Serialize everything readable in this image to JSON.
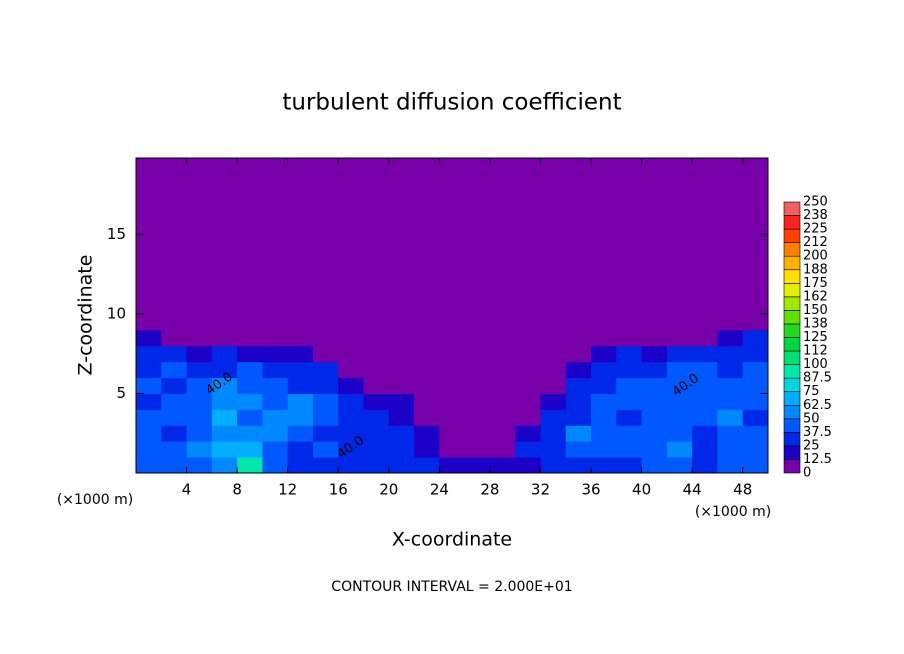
{
  "chart_data": {
    "type": "contour",
    "title": "turbulent diffusion coefficient",
    "xlabel": "X-coordinate",
    "ylabel": "Z-coordinate",
    "x_unit": "(×1000 m)",
    "y_unit": "(×1000 m)",
    "footnote": "CONTOUR INTERVAL = 2.000E+01",
    "xlim": [
      0,
      50
    ],
    "ylim": [
      0,
      19.8
    ],
    "xticks": [
      4,
      8,
      12,
      16,
      20,
      24,
      28,
      32,
      36,
      40,
      44,
      48
    ],
    "yticks": [
      5,
      10,
      15
    ],
    "x_edges": [
      0,
      2,
      4,
      6,
      8,
      10,
      12,
      14,
      16,
      18,
      20,
      22,
      24,
      26,
      28,
      30,
      32,
      34,
      36,
      38,
      40,
      42,
      44,
      46,
      48,
      50
    ],
    "y_edges": [
      0,
      1,
      2,
      3,
      4,
      5,
      6,
      7,
      8,
      9,
      10,
      19.8
    ],
    "values": [
      [
        40,
        45,
        45,
        60,
        90,
        40,
        35,
        30,
        30,
        25,
        30,
        25,
        20,
        15,
        15,
        20,
        30,
        35,
        30,
        35,
        40,
        45,
        35,
        40,
        40
      ],
      [
        45,
        40,
        50,
        65,
        70,
        45,
        35,
        40,
        35,
        30,
        30,
        15,
        10,
        10,
        10,
        25,
        35,
        40,
        45,
        40,
        45,
        50,
        35,
        40,
        40
      ],
      [
        40,
        35,
        45,
        60,
        50,
        55,
        45,
        35,
        30,
        35,
        25,
        15,
        10,
        5,
        10,
        20,
        30,
        55,
        45,
        40,
        45,
        40,
        35,
        45,
        40
      ],
      [
        45,
        40,
        40,
        65,
        45,
        60,
        50,
        40,
        30,
        30,
        20,
        10,
        5,
        5,
        5,
        10,
        25,
        35,
        40,
        35,
        40,
        45,
        40,
        50,
        35
      ],
      [
        35,
        40,
        45,
        55,
        50,
        45,
        55,
        40,
        25,
        20,
        15,
        10,
        5,
        0,
        0,
        5,
        20,
        30,
        40,
        45,
        40,
        40,
        40,
        45,
        40
      ],
      [
        40,
        35,
        40,
        50,
        45,
        40,
        35,
        30,
        20,
        10,
        10,
        5,
        0,
        0,
        0,
        0,
        10,
        30,
        35,
        40,
        40,
        45,
        45,
        40,
        40
      ],
      [
        35,
        40,
        35,
        30,
        40,
        35,
        30,
        25,
        10,
        5,
        0,
        0,
        0,
        0,
        0,
        0,
        5,
        20,
        30,
        35,
        35,
        40,
        40,
        35,
        40
      ],
      [
        30,
        25,
        20,
        25,
        20,
        20,
        15,
        10,
        0,
        0,
        0,
        0,
        0,
        0,
        0,
        0,
        0,
        5,
        15,
        25,
        20,
        25,
        30,
        30,
        30
      ],
      [
        20,
        10,
        5,
        0,
        0,
        0,
        0,
        0,
        0,
        0,
        0,
        0,
        0,
        0,
        0,
        0,
        0,
        0,
        0,
        0,
        5,
        5,
        10,
        20,
        25
      ],
      [
        10,
        0,
        0,
        0,
        0,
        0,
        0,
        0,
        0,
        0,
        0,
        0,
        0,
        0,
        0,
        0,
        0,
        0,
        0,
        0,
        0,
        0,
        0,
        0,
        0
      ],
      [
        0,
        0,
        0,
        0,
        0,
        0,
        0,
        0,
        0,
        0,
        0,
        0,
        0,
        0,
        0,
        0,
        0,
        0,
        0,
        0,
        0,
        0,
        0,
        0,
        0
      ]
    ],
    "contour_labels": [
      {
        "value": 40,
        "label": "40.0",
        "x": 6.6,
        "y": 5.6
      },
      {
        "value": 40,
        "label": "40.0",
        "x": 17,
        "y": 1.6
      },
      {
        "value": 40,
        "label": "40.0",
        "x": 43.5,
        "y": 5.5
      }
    ],
    "colorbar": {
      "levels": [
        0,
        12.5,
        25,
        37.5,
        50,
        62.5,
        75,
        87.5,
        100,
        112,
        125,
        138,
        150,
        162,
        175,
        188,
        200,
        212,
        225,
        238,
        250
      ],
      "colors": [
        "#7800a8",
        "#1c00c8",
        "#0028e8",
        "#0058ff",
        "#0088ff",
        "#00b0ff",
        "#00d8e0",
        "#00e8a8",
        "#00e070",
        "#00d840",
        "#20d820",
        "#60e000",
        "#a0e800",
        "#e0f000",
        "#ffe000",
        "#ffb000",
        "#ff8000",
        "#ff4000",
        "#ff2020",
        "#f06060"
      ]
    }
  }
}
